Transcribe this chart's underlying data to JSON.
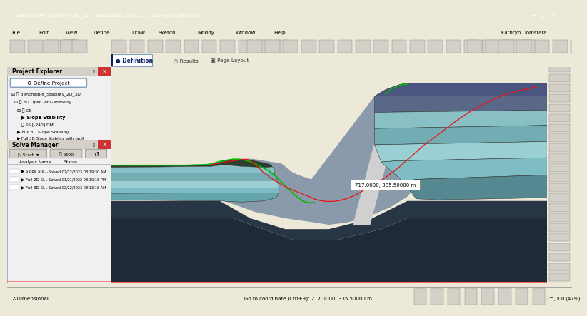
{
  "title_bar": "BenchedPit_Stability_2D_3D - GeoStudio 2023.1.0 [SLOPE/W Definition]",
  "user": "Kathryn Domstara",
  "menu_items": [
    "File",
    "Edit",
    "View",
    "Define",
    "Draw",
    "Sketch",
    "Modify",
    "Window",
    "Help"
  ],
  "tab_items": [
    "Definition",
    "Results",
    "Page Layout"
  ],
  "bg_color": "#ece9d8",
  "canvas_bg": "#ffffff",
  "toolbar_bg": "#ece9d8",
  "left_panel_bg": "#f5f5f5",
  "project_explorer_title": "Project Explorer",
  "solve_manager_title": "Solve Manager",
  "solve_items": [
    {
      "name": "Slope Sta...",
      "status": "Solved 02/22/2023 08:19:30 AM"
    },
    {
      "name": "Full 2D Sl...",
      "status": "Solved 01/21/2022 08:10:18 PM"
    },
    {
      "name": "Full 3D Sl...",
      "status": "Solved 02/22/2023 08:13:18 AM"
    }
  ],
  "status_bar_left": "2-Dimensional",
  "status_bar_right": "Go to coordinate (Ctrl+R): 217.0000, 335.50000 m",
  "tooltip_text": "717.0000, 335.50000 m",
  "scale_text": "1:5,000 (47%)",
  "col_titlebar": "#0a246a",
  "col_titlebar_text": "#ffffff",
  "col_dark_base": "#1e2a35",
  "col_dark2": "#283545",
  "col_mid_gray": "#8a9aaa",
  "col_light_gray_slope": "#9daab5",
  "col_teal1": "#7fc4c8",
  "col_teal2": "#6ab0b5",
  "col_teal3": "#aad4d8",
  "col_teal4": "#90c0c5",
  "col_teal5": "#b8dde0",
  "col_teal6": "#c5e5e8",
  "col_navy": "#3c4e6a",
  "col_slate": "#5a6878",
  "col_white_vein": "#d5d5d5",
  "col_green_line": "#00bb00",
  "col_red_line": "#ee1111",
  "col_red_bottom": "#ff6060"
}
